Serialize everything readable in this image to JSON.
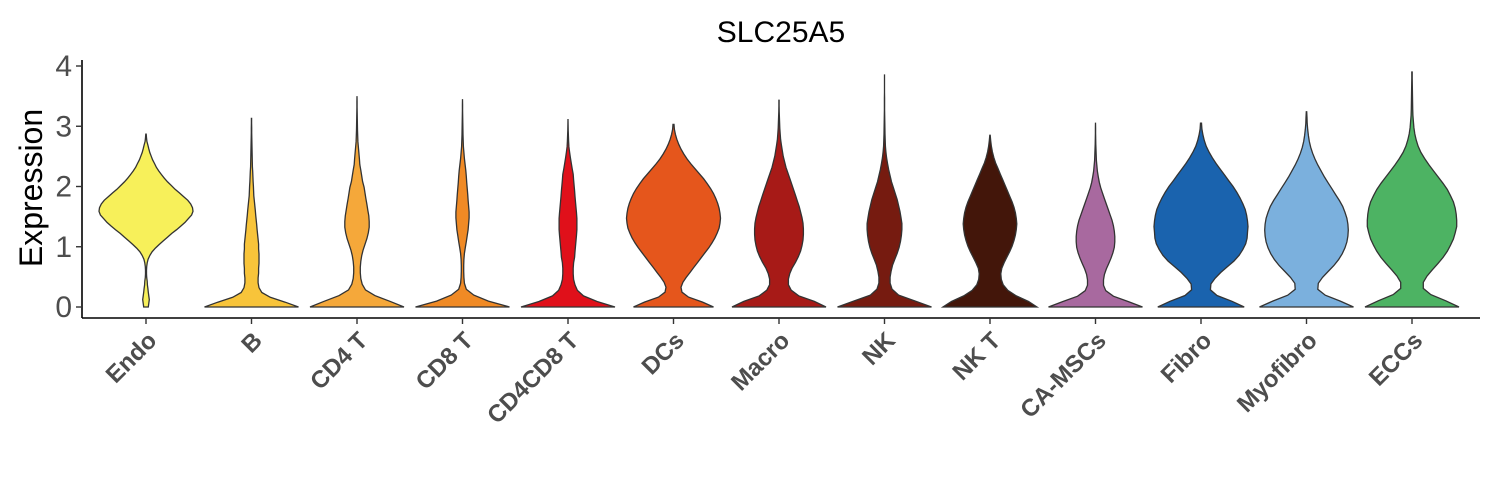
{
  "chart_data": {
    "type": "violin",
    "title": "SLC25A5",
    "ylabel": "Expression",
    "xlabel": "",
    "ylim": [
      0,
      4
    ],
    "yticks": [
      0,
      1,
      2,
      3,
      4
    ],
    "grid": false,
    "legend": "none",
    "series": [
      {
        "name": "Endo",
        "color": "#f7f05a",
        "max": 2.87,
        "shape": [
          0.05,
          0.06,
          0.07,
          0.06,
          0.05,
          0.04,
          0.03,
          0.025,
          0.015,
          0.01,
          0.01,
          0.015,
          0.025,
          0.045,
          0.08,
          0.13,
          0.2,
          0.28,
          0.37,
          0.46,
          0.55,
          0.65,
          0.74,
          0.83,
          0.9,
          0.97,
          1.0,
          0.99,
          0.95,
          0.89,
          0.8,
          0.71,
          0.62,
          0.54,
          0.46,
          0.39,
          0.33,
          0.27,
          0.22,
          0.18,
          0.14,
          0.11,
          0.08,
          0.06,
          0.04,
          0.02,
          0.01,
          0.005
        ]
      },
      {
        "name": "B",
        "color": "#f8c43a",
        "max": 3.13,
        "shape": [
          1.0,
          0.72,
          0.4,
          0.22,
          0.16,
          0.14,
          0.14,
          0.15,
          0.15,
          0.16,
          0.16,
          0.16,
          0.15,
          0.15,
          0.14,
          0.13,
          0.12,
          0.11,
          0.1,
          0.09,
          0.08,
          0.07,
          0.06,
          0.05,
          0.045,
          0.04,
          0.035,
          0.03,
          0.025,
          0.02,
          0.018,
          0.015,
          0.012,
          0.01,
          0.008,
          0.006,
          0.005,
          0.004,
          0.003,
          0.002
        ]
      },
      {
        "name": "CD4 T",
        "color": "#f5a83a",
        "max": 3.5,
        "shape": [
          1.0,
          0.7,
          0.38,
          0.18,
          0.11,
          0.08,
          0.07,
          0.07,
          0.08,
          0.1,
          0.13,
          0.17,
          0.21,
          0.24,
          0.26,
          0.26,
          0.25,
          0.23,
          0.21,
          0.19,
          0.17,
          0.15,
          0.12,
          0.1,
          0.08,
          0.06,
          0.05,
          0.04,
          0.03,
          0.02,
          0.015,
          0.01,
          0.008,
          0.006,
          0.004,
          0.003,
          0.002,
          0.001
        ]
      },
      {
        "name": "CD8 T",
        "color": "#f08a25",
        "max": 3.45,
        "shape": [
          1.0,
          0.55,
          0.24,
          0.08,
          0.04,
          0.03,
          0.025,
          0.025,
          0.03,
          0.04,
          0.06,
          0.08,
          0.1,
          0.12,
          0.13,
          0.14,
          0.14,
          0.13,
          0.12,
          0.11,
          0.1,
          0.09,
          0.08,
          0.07,
          0.055,
          0.04,
          0.03,
          0.02,
          0.015,
          0.01,
          0.008,
          0.006,
          0.004,
          0.003,
          0.002,
          0.001
        ]
      },
      {
        "name": "CD4CD8 T",
        "color": "#e0101a",
        "max": 3.12,
        "shape": [
          1.0,
          0.62,
          0.33,
          0.2,
          0.15,
          0.12,
          0.11,
          0.11,
          0.12,
          0.14,
          0.15,
          0.16,
          0.17,
          0.18,
          0.19,
          0.19,
          0.19,
          0.18,
          0.17,
          0.16,
          0.15,
          0.14,
          0.13,
          0.12,
          0.11,
          0.09,
          0.07,
          0.05,
          0.035,
          0.02,
          0.012,
          0.008,
          0.005,
          0.003,
          0.001
        ]
      },
      {
        "name": "DCs",
        "color": "#e5561c",
        "max": 3.03,
        "shape": [
          0.85,
          0.62,
          0.32,
          0.18,
          0.16,
          0.2,
          0.27,
          0.35,
          0.43,
          0.51,
          0.59,
          0.67,
          0.75,
          0.82,
          0.88,
          0.93,
          0.97,
          0.99,
          1.0,
          0.99,
          0.97,
          0.94,
          0.9,
          0.85,
          0.79,
          0.72,
          0.64,
          0.55,
          0.46,
          0.37,
          0.29,
          0.22,
          0.16,
          0.11,
          0.07,
          0.04,
          0.02,
          0.01
        ]
      },
      {
        "name": "Macro",
        "color": "#a71a17",
        "max": 3.43,
        "shape": [
          1.0,
          0.75,
          0.42,
          0.26,
          0.2,
          0.2,
          0.23,
          0.28,
          0.35,
          0.41,
          0.46,
          0.49,
          0.51,
          0.52,
          0.52,
          0.51,
          0.49,
          0.46,
          0.43,
          0.39,
          0.35,
          0.31,
          0.27,
          0.23,
          0.19,
          0.15,
          0.12,
          0.09,
          0.07,
          0.05,
          0.035,
          0.025,
          0.018,
          0.012,
          0.008,
          0.005,
          0.003,
          0.002
        ]
      },
      {
        "name": "NK",
        "color": "#761b10",
        "max": 3.86,
        "shape": [
          1.0,
          0.65,
          0.3,
          0.16,
          0.12,
          0.12,
          0.14,
          0.17,
          0.22,
          0.27,
          0.31,
          0.34,
          0.36,
          0.37,
          0.37,
          0.35,
          0.33,
          0.3,
          0.27,
          0.23,
          0.19,
          0.15,
          0.12,
          0.09,
          0.065,
          0.045,
          0.03,
          0.02,
          0.015,
          0.01,
          0.008,
          0.006,
          0.004,
          0.003,
          0.002,
          0.0015,
          0.001,
          0.001,
          0.001,
          0.001
        ]
      },
      {
        "name": "NK T",
        "color": "#43160a",
        "max": 2.85,
        "shape": [
          1.0,
          0.82,
          0.56,
          0.38,
          0.28,
          0.24,
          0.23,
          0.25,
          0.3,
          0.36,
          0.42,
          0.47,
          0.51,
          0.54,
          0.56,
          0.57,
          0.56,
          0.54,
          0.51,
          0.47,
          0.42,
          0.37,
          0.32,
          0.27,
          0.22,
          0.17,
          0.12,
          0.08,
          0.05,
          0.03,
          0.015,
          0.005
        ]
      },
      {
        "name": "CA-MSCs",
        "color": "#a8699f",
        "max": 3.06,
        "shape": [
          1.0,
          0.7,
          0.38,
          0.22,
          0.17,
          0.17,
          0.19,
          0.23,
          0.28,
          0.33,
          0.37,
          0.4,
          0.41,
          0.41,
          0.4,
          0.38,
          0.35,
          0.31,
          0.27,
          0.23,
          0.19,
          0.15,
          0.11,
          0.08,
          0.06,
          0.04,
          0.03,
          0.02,
          0.015,
          0.01,
          0.007,
          0.005,
          0.003,
          0.002,
          0.001
        ]
      },
      {
        "name": "Fibro",
        "color": "#1a63ae",
        "max": 3.05,
        "shape": [
          0.92,
          0.66,
          0.34,
          0.2,
          0.21,
          0.3,
          0.42,
          0.56,
          0.7,
          0.81,
          0.89,
          0.95,
          0.98,
          0.99,
          1.0,
          0.99,
          0.97,
          0.94,
          0.89,
          0.83,
          0.76,
          0.68,
          0.59,
          0.5,
          0.41,
          0.32,
          0.24,
          0.17,
          0.11,
          0.07,
          0.04,
          0.02,
          0.01
        ]
      },
      {
        "name": "Myofibro",
        "color": "#7bb0dd",
        "max": 3.24,
        "shape": [
          1.0,
          0.72,
          0.4,
          0.24,
          0.25,
          0.34,
          0.46,
          0.58,
          0.68,
          0.76,
          0.82,
          0.86,
          0.88,
          0.89,
          0.88,
          0.86,
          0.82,
          0.77,
          0.7,
          0.62,
          0.54,
          0.46,
          0.38,
          0.31,
          0.24,
          0.18,
          0.13,
          0.09,
          0.06,
          0.04,
          0.025,
          0.015,
          0.01,
          0.005
        ]
      },
      {
        "name": "ECCs",
        "color": "#4db363",
        "max": 3.9,
        "shape": [
          1.0,
          0.72,
          0.4,
          0.24,
          0.24,
          0.32,
          0.43,
          0.55,
          0.66,
          0.75,
          0.82,
          0.88,
          0.92,
          0.95,
          0.95,
          0.94,
          0.92,
          0.88,
          0.82,
          0.75,
          0.66,
          0.56,
          0.46,
          0.36,
          0.27,
          0.19,
          0.13,
          0.09,
          0.06,
          0.04,
          0.03,
          0.02,
          0.015,
          0.012,
          0.01,
          0.008,
          0.006,
          0.005,
          0.004
        ]
      }
    ]
  }
}
